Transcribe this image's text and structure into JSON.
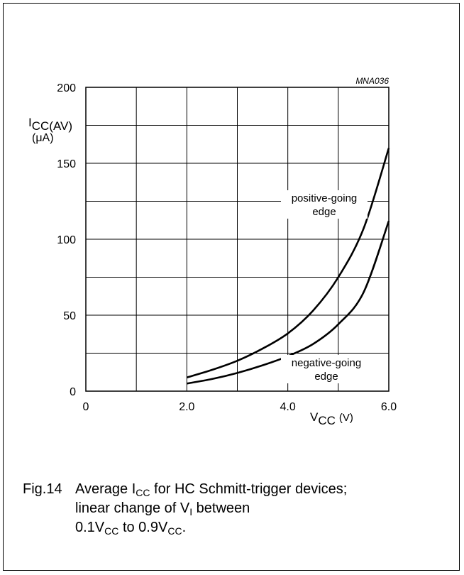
{
  "chart_data": {
    "type": "line",
    "code": "MNA036",
    "ylabel": {
      "main": "I",
      "sub": "CC(AV)",
      "unit": "(μA)"
    },
    "xlabel": {
      "main": "V",
      "sub": "CC",
      "unit": "(V)"
    },
    "xlim": [
      0,
      6
    ],
    "ylim": [
      0,
      200
    ],
    "x_ticks": [
      0,
      1,
      2,
      3,
      4,
      5,
      6
    ],
    "y_ticks": [
      0,
      25,
      50,
      75,
      100,
      125,
      150,
      175,
      200
    ],
    "x_tick_labels": [
      {
        "value": 0,
        "label": "0"
      },
      {
        "value": 2,
        "label": "2.0"
      },
      {
        "value": 4,
        "label": "4.0"
      },
      {
        "value": 6,
        "label": "6.0"
      }
    ],
    "y_tick_labels": [
      {
        "value": 0,
        "label": "0"
      },
      {
        "value": 50,
        "label": "50"
      },
      {
        "value": 100,
        "label": "100"
      },
      {
        "value": 150,
        "label": "150"
      },
      {
        "value": 200,
        "label": "200"
      }
    ],
    "grid": true,
    "series": [
      {
        "name": "positive-going edge",
        "label_lines": [
          "positive-going",
          "edge"
        ],
        "x": [
          2.0,
          2.5,
          3.0,
          3.5,
          4.0,
          4.5,
          5.0,
          5.5,
          6.0
        ],
        "y": [
          9,
          14,
          20,
          28,
          38,
          53,
          75,
          107,
          160
        ]
      },
      {
        "name": "negative-going edge",
        "label_lines": [
          "negative-going",
          "edge"
        ],
        "x": [
          2.0,
          2.5,
          3.0,
          3.5,
          4.0,
          4.5,
          5.0,
          5.5,
          6.0
        ],
        "y": [
          5,
          8,
          12,
          17,
          23,
          31,
          44,
          65,
          112
        ]
      }
    ]
  },
  "caption": {
    "fig": "Fig.14",
    "line1": {
      "text_a": "Average I",
      "sub": "CC",
      "text_b": " for HC Schmitt-trigger devices;"
    },
    "line2": {
      "text_a": "linear change of V",
      "sub": "I",
      "text_b": " between"
    },
    "line3": {
      "text_a": "0.1V",
      "sub_a": "CC",
      "text_b": " to 0.9V",
      "sub_b": "CC",
      "text_c": "."
    }
  }
}
